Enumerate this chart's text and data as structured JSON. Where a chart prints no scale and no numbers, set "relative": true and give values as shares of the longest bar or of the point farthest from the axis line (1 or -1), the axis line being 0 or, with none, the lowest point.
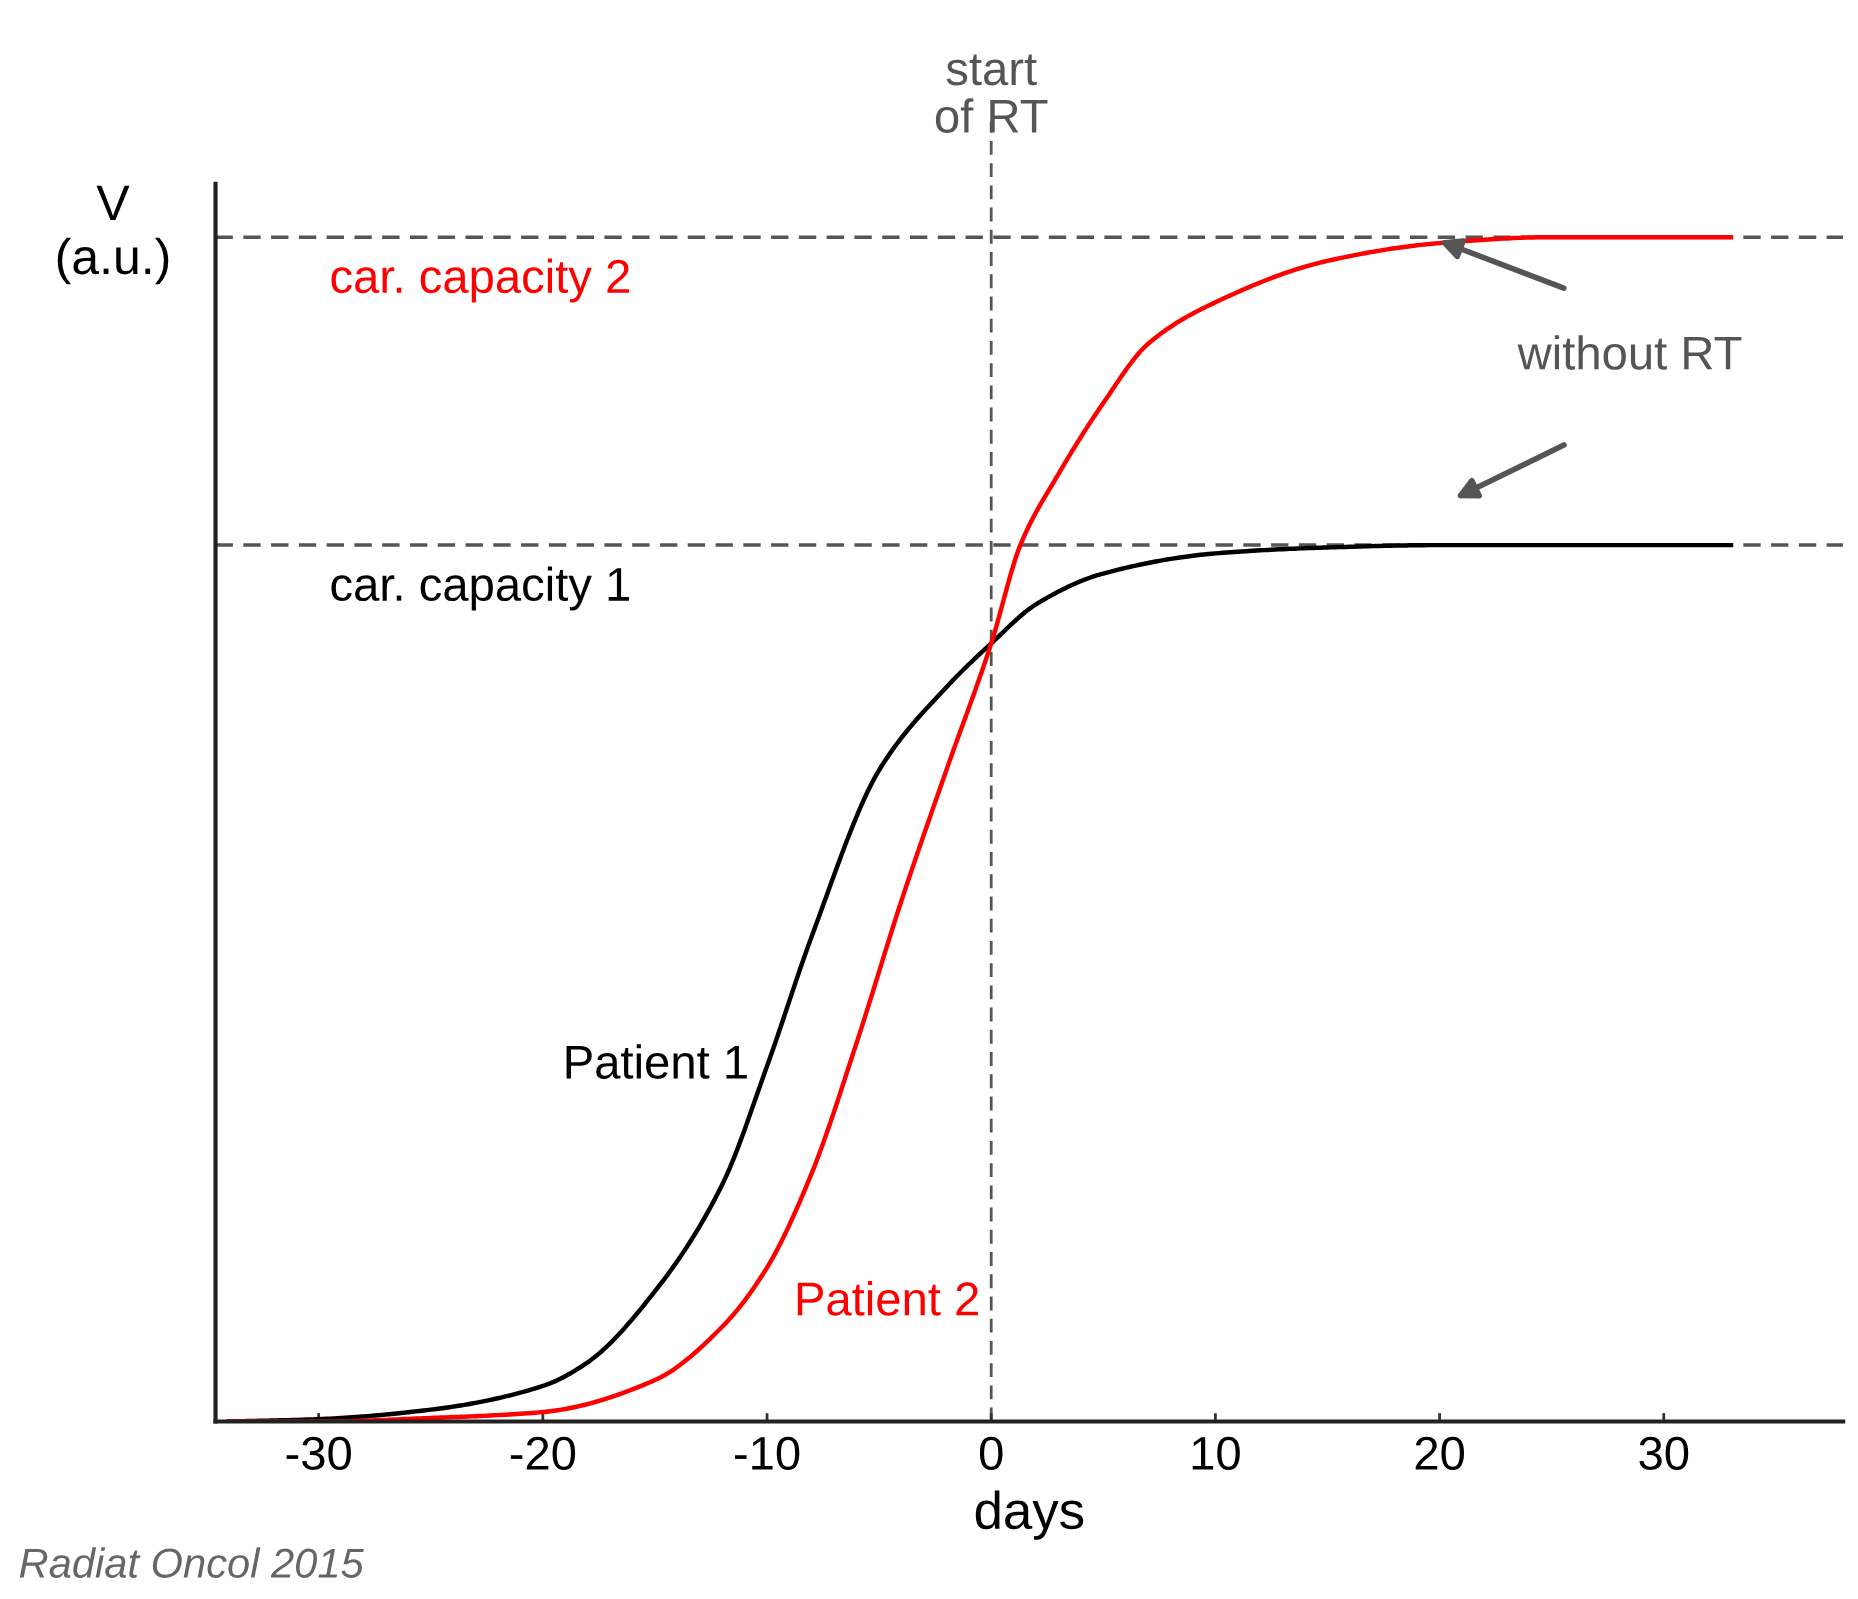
{
  "chart_data": {
    "type": "line",
    "relative": true,
    "xlabel": "days",
    "ylabel": "V\n(a.u.)",
    "xlim": [
      -34.6,
      38
    ],
    "xticks": [
      -30,
      -20,
      -10,
      0,
      10,
      20,
      30
    ],
    "grid": false,
    "legend": false,
    "marker": "none",
    "line_style": "solid",
    "series": [
      {
        "name": "Patient 1",
        "color": "#000000",
        "x": [
          -34,
          -30,
          -25,
          -20,
          -18,
          -15,
          -12,
          -10,
          -8,
          -5,
          -2,
          0,
          2,
          5,
          10,
          15,
          20,
          33
        ],
        "values": [
          0,
          0.002,
          0.01,
          0.03,
          0.05,
          0.11,
          0.2,
          0.3,
          0.41,
          0.55,
          0.62,
          0.657,
          0.69,
          0.716,
          0.733,
          0.738,
          0.74,
          0.74
        ]
      },
      {
        "name": "Patient 2",
        "color": "#ff0000",
        "x": [
          -34,
          -30,
          -25,
          -20,
          -15,
          -12,
          -10,
          -8,
          -6,
          -4,
          -2,
          0,
          1.3,
          3,
          5,
          7,
          10,
          15,
          20,
          25,
          33
        ],
        "values": [
          0,
          0,
          0.003,
          0.008,
          0.035,
          0.08,
          0.13,
          0.21,
          0.32,
          0.44,
          0.55,
          0.657,
          0.74,
          0.8,
          0.86,
          0.91,
          0.945,
          0.98,
          0.995,
          1,
          1
        ]
      }
    ],
    "ref_lines": [
      {
        "axis": "y",
        "value": 0.74,
        "label": "car. capacity 1",
        "color": "#555555",
        "line_style": "dashed"
      },
      {
        "axis": "y",
        "value": 1,
        "label": "car. capacity 2",
        "color": "#555555",
        "line_style": "dashed"
      },
      {
        "axis": "x",
        "value": 0,
        "label": "start\nof RT",
        "color": "#555555",
        "line_style": "dashed"
      }
    ],
    "annotations": [
      "without RT",
      "Radiat Oncol 2015"
    ]
  }
}
